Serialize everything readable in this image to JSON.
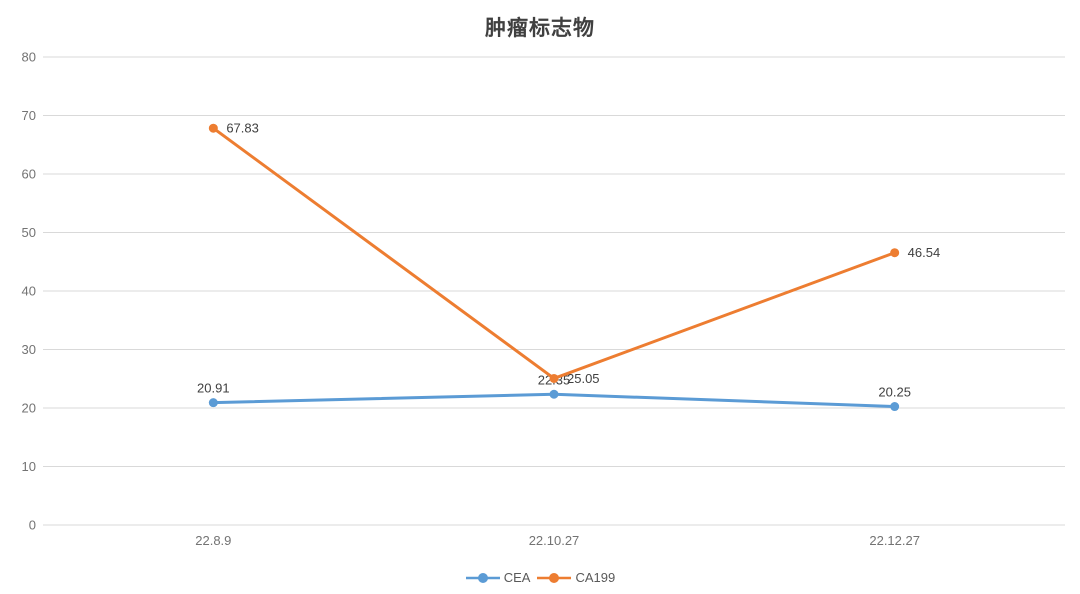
{
  "chart_data": {
    "type": "line",
    "title": "肿瘤标志物",
    "categories": [
      "22.8.9",
      "22.10.27",
      "22.12.27"
    ],
    "series": [
      {
        "name": "CEA",
        "color": "#5B9BD5",
        "values": [
          20.91,
          22.35,
          20.25
        ],
        "labels": [
          "20.91",
          "22.35",
          "20.25"
        ],
        "label_position": "above"
      },
      {
        "name": "CA199",
        "color": "#ED7D31",
        "values": [
          67.83,
          25.05,
          46.54
        ],
        "labels": [
          "67.83",
          "25.05",
          "46.54"
        ],
        "label_position": "right"
      }
    ],
    "xlabel": "",
    "ylabel": "",
    "ylim": [
      0,
      80
    ],
    "ytick_step": 10,
    "grid": true,
    "grid_color": "#D9D9D9",
    "axis_text_color": "#737373",
    "data_label_color": "#404040",
    "title_color": "#404040",
    "legend_position": "bottom-center"
  }
}
